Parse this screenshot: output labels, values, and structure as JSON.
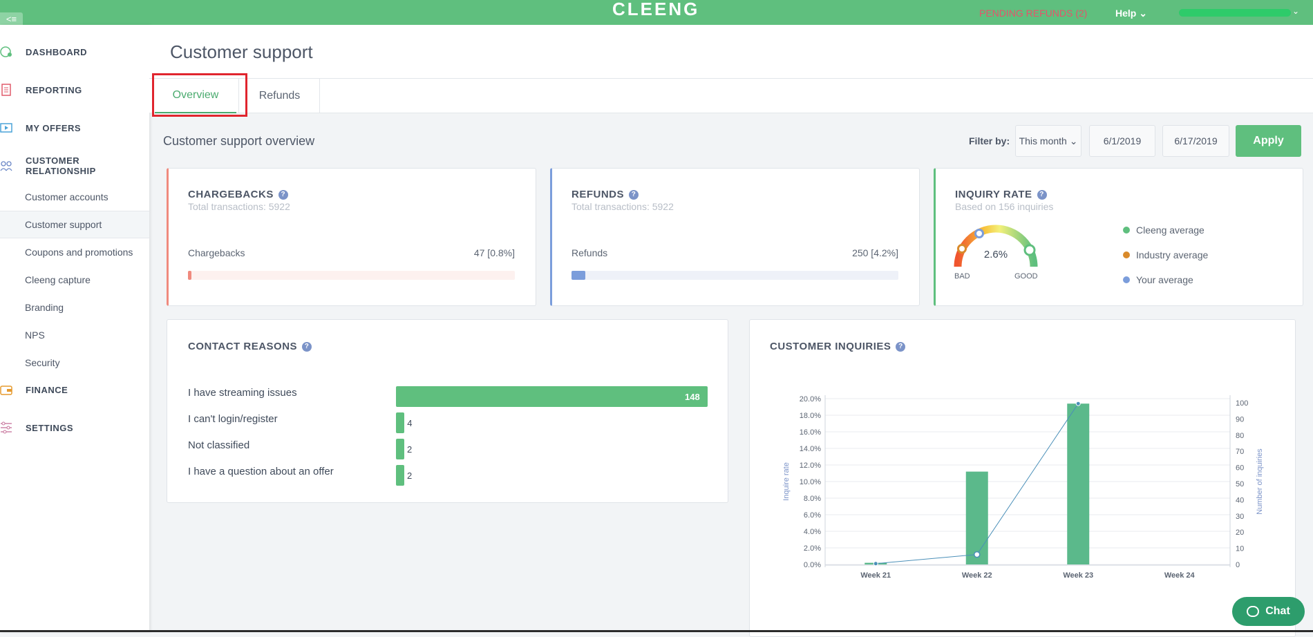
{
  "topbar": {
    "logo": "CLEENG",
    "collapse_glyph": "<≡",
    "pending_refunds": "PENDING REFUNDS (2)",
    "help": "Help",
    "help_chevron": "⌄",
    "user_chevron": "⌄",
    "accent": "#5fbf7e"
  },
  "sidebar": {
    "main": {
      "dashboard": "DASHBOARD",
      "reporting": "REPORTING",
      "offers": "MY OFFERS",
      "customer_relationship": "CUSTOMER RELATIONSHIP",
      "finance": "FINANCE",
      "settings": "SETTINGS"
    },
    "sub": [
      "Customer accounts",
      "Customer support",
      "Coupons and promotions",
      "Cleeng capture",
      "Branding",
      "NPS",
      "Security"
    ],
    "active_sub": "Customer support"
  },
  "page": {
    "title": "Customer support",
    "tabs": [
      "Overview",
      "Refunds"
    ],
    "active_tab": "Overview",
    "overview_title": "Customer support overview",
    "filter": {
      "label": "Filter by:",
      "period": "This month",
      "period_chevron": "⌄",
      "from": "6/1/2019",
      "to": "6/17/2019",
      "apply": "Apply"
    }
  },
  "cards": {
    "help_glyph": "?",
    "chargebacks": {
      "title": "CHARGEBACKS",
      "subtitle": "Total transactions: 5922",
      "label": "Chargebacks",
      "value": "47 [0.8%]",
      "fraction": 0.008,
      "accent": "#f08a7e"
    },
    "refunds": {
      "title": "REFUNDS",
      "subtitle": "Total transactions: 5922",
      "label": "Refunds",
      "value": "250 [4.2%]",
      "fraction": 0.042,
      "accent": "#7b9ddb"
    },
    "inquiry": {
      "title": "INQUIRY RATE",
      "subtitle": "Based on 156 inquiries",
      "rate": "2.6%",
      "bad": "BAD",
      "good": "GOOD",
      "legend": [
        {
          "label": "Cleeng average",
          "color": "#5fbf7e"
        },
        {
          "label": "Industry average",
          "color": "#d98a2b"
        },
        {
          "label": "Your average",
          "color": "#7b9ddb"
        }
      ],
      "accent": "#5fbf7e"
    }
  },
  "contact_reasons": {
    "title": "CONTACT REASONS",
    "items": [
      {
        "label": "I have streaming issues",
        "value": "148"
      },
      {
        "label": "I can't login/register",
        "value": "4"
      },
      {
        "label": "Not classified",
        "value": "2"
      },
      {
        "label": "I have a question about an offer",
        "value": "2"
      }
    ]
  },
  "customer_inquiries": {
    "title": "CUSTOMER INQUIRIES"
  },
  "chart_data": {
    "type": "bar",
    "title": "CUSTOMER INQUIRIES",
    "categories": [
      "Week 21",
      "Week 22",
      "Week 23",
      "Week 24"
    ],
    "series": [
      {
        "name": "Number of inquiries",
        "type": "bar",
        "axis": "right",
        "values": [
          1,
          56,
          97,
          0
        ],
        "color": "#5bb98b"
      },
      {
        "name": "Inquire rate",
        "type": "line",
        "axis": "left",
        "values": [
          0.1,
          1.2,
          19.4,
          null
        ],
        "color": "#4a8fb8"
      }
    ],
    "ylabel": "Inquire rate",
    "y2label": "Number of inquiries",
    "ylim": [
      0,
      20
    ],
    "y2lim": [
      0,
      100
    ],
    "yticks": [
      "20.0%",
      "18.0%",
      "16.0%",
      "14.0%",
      "12.0%",
      "10.0%",
      "8.0%",
      "6.0%",
      "4.0%",
      "2.0%",
      "0.0%"
    ],
    "y2ticks": [
      "100",
      "90",
      "80",
      "70",
      "60",
      "50",
      "40",
      "30",
      "20",
      "10",
      "0"
    ],
    "grid": true
  },
  "chat": {
    "label": "Chat"
  }
}
